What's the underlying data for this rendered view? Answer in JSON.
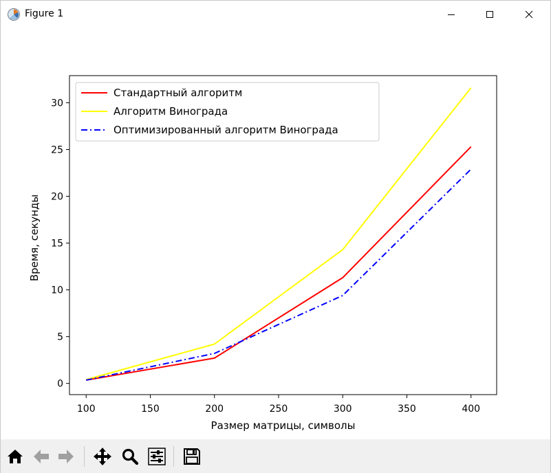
{
  "window": {
    "title": "Figure 1",
    "icons": [
      "app-icon",
      "minimize-icon",
      "maximize-icon",
      "close-icon"
    ]
  },
  "toolbar": {
    "buttons": [
      "home-icon",
      "back-icon",
      "forward-icon",
      "pan-icon",
      "zoom-icon",
      "configure-subplots-icon",
      "save-icon"
    ]
  },
  "chart_data": {
    "type": "line",
    "title": "",
    "xlabel": "Размер матрицы, символы",
    "ylabel": "Время, секунды",
    "x": [
      100,
      200,
      300,
      400
    ],
    "xlim": [
      87,
      420
    ],
    "ylim": [
      -1.2,
      32.9
    ],
    "xticks": [
      100,
      150,
      200,
      250,
      300,
      350,
      400
    ],
    "yticks": [
      0,
      5,
      10,
      15,
      20,
      25,
      30
    ],
    "grid": false,
    "legend_position": "upper left",
    "series": [
      {
        "name": "Стандартный алгоритм",
        "values": [
          0.35,
          2.7,
          11.3,
          25.3
        ],
        "color": "#ff0000",
        "style": "solid"
      },
      {
        "name": "Алгоритм Винограда",
        "values": [
          0.4,
          4.2,
          14.3,
          31.6
        ],
        "color": "#ffff00",
        "style": "solid"
      },
      {
        "name": "Оптимизированный алгоритм Винограда",
        "values": [
          0.35,
          3.2,
          9.4,
          22.9
        ],
        "color": "#0000ff",
        "style": "dashdot"
      }
    ]
  }
}
